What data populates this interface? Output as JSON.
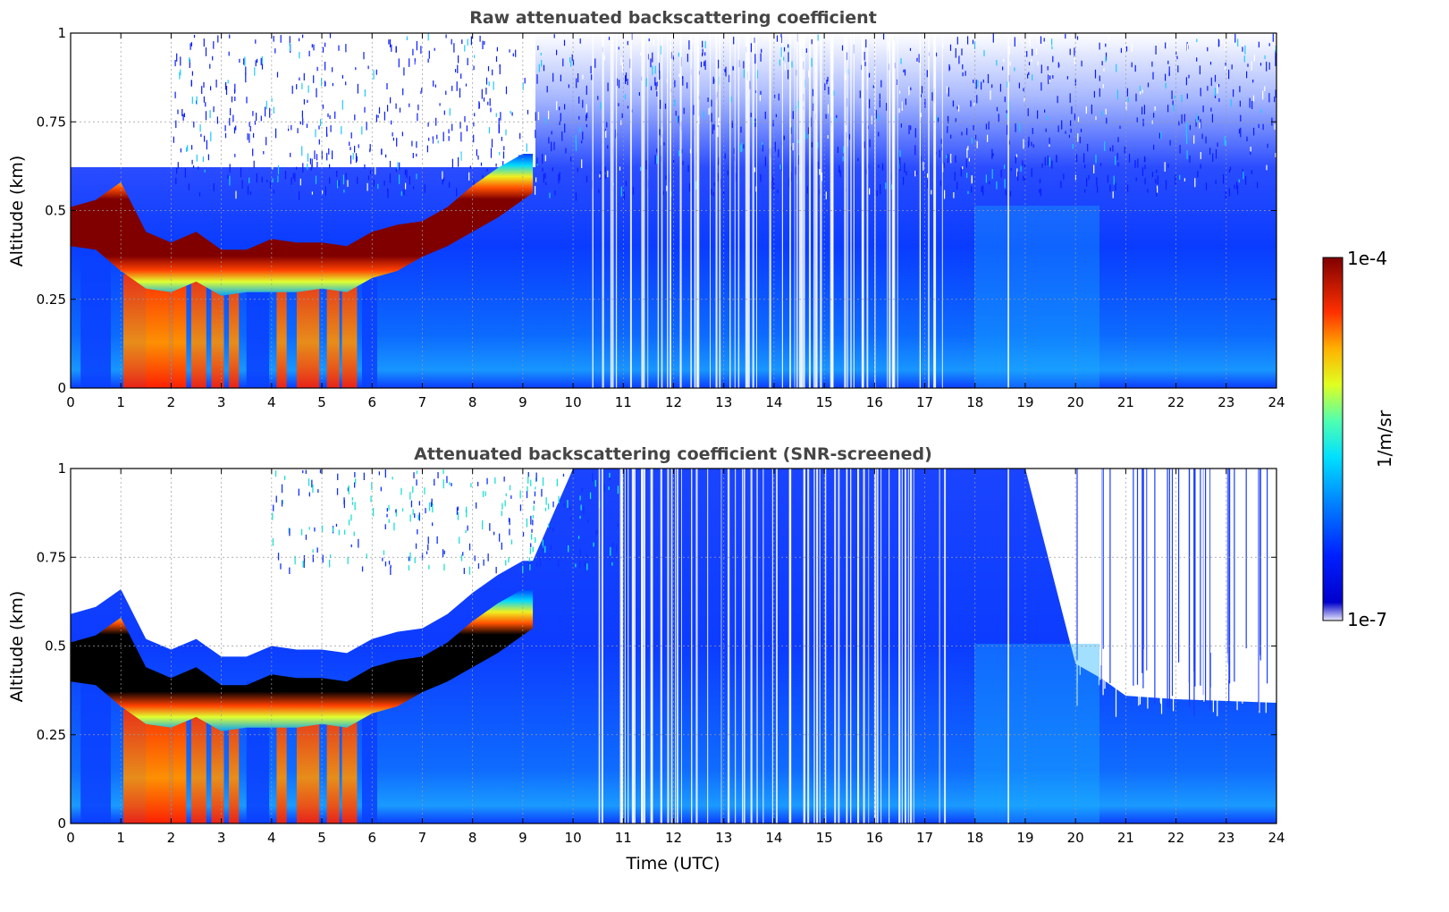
{
  "chart_data": [
    {
      "type": "heatmap",
      "title": "Raw attenuated backscattering coefficient",
      "xlabel": "",
      "ylabel": "Altitude (km)",
      "xlim": [
        0,
        24
      ],
      "ylim": [
        0,
        1
      ],
      "xticks": [
        "0",
        "1",
        "2",
        "3",
        "4",
        "5",
        "6",
        "7",
        "8",
        "9",
        "10",
        "11",
        "12",
        "13",
        "14",
        "15",
        "16",
        "17",
        "18",
        "19",
        "20",
        "21",
        "22",
        "23",
        "24"
      ],
      "yticks": [
        "0",
        "0.25",
        "0.5",
        "0.75",
        "1"
      ],
      "grid": true,
      "colorscale": "jet",
      "color_range": [
        "1e-7",
        "1e-4"
      ],
      "color_units": "1/m/sr",
      "cloud_layer_altitude_km": {
        "time_utc": [
          0,
          0.5,
          1,
          1.5,
          2,
          2.5,
          3,
          3.5,
          4,
          4.5,
          5,
          5.5,
          6,
          6.5,
          7,
          7.5,
          8,
          8.5,
          9,
          9.2
        ],
        "base": [
          0.4,
          0.39,
          0.33,
          0.28,
          0.27,
          0.3,
          0.26,
          0.27,
          0.27,
          0.27,
          0.28,
          0.27,
          0.31,
          0.33,
          0.37,
          0.4,
          0.44,
          0.48,
          0.53,
          0.55
        ],
        "top": [
          0.51,
          0.53,
          0.58,
          0.44,
          0.41,
          0.44,
          0.39,
          0.39,
          0.42,
          0.41,
          0.41,
          0.4,
          0.44,
          0.46,
          0.47,
          0.51,
          0.57,
          0.62,
          0.66,
          0.66
        ]
      }
    },
    {
      "type": "heatmap",
      "title": "Attenuated backscattering coefficient (SNR-screened)",
      "xlabel": "Time (UTC)",
      "ylabel": "Altitude (km)",
      "xlim": [
        0,
        24
      ],
      "ylim": [
        0,
        1
      ],
      "xticks": [
        "0",
        "1",
        "2",
        "3",
        "4",
        "5",
        "6",
        "7",
        "8",
        "9",
        "10",
        "11",
        "12",
        "13",
        "14",
        "15",
        "16",
        "17",
        "18",
        "19",
        "20",
        "21",
        "22",
        "23",
        "24"
      ],
      "yticks": [
        "0",
        "0.25",
        "0.5",
        "0.75",
        "1"
      ],
      "grid": true,
      "colorscale": "jet",
      "color_range": [
        "1e-7",
        "1e-4"
      ],
      "color_units": "1/m/sr",
      "cloud_layer_altitude_km": {
        "time_utc": [
          0,
          0.5,
          1,
          1.5,
          2,
          2.5,
          3,
          3.5,
          4,
          4.5,
          5,
          5.5,
          6,
          6.5,
          7,
          7.5,
          8,
          8.5,
          9,
          9.2
        ],
        "base": [
          0.4,
          0.39,
          0.33,
          0.28,
          0.27,
          0.3,
          0.26,
          0.27,
          0.27,
          0.27,
          0.28,
          0.27,
          0.31,
          0.33,
          0.37,
          0.4,
          0.44,
          0.48,
          0.53,
          0.55
        ],
        "top": [
          0.51,
          0.53,
          0.58,
          0.44,
          0.41,
          0.44,
          0.39,
          0.39,
          0.42,
          0.41,
          0.41,
          0.4,
          0.44,
          0.46,
          0.47,
          0.51,
          0.57,
          0.62,
          0.66,
          0.66
        ]
      },
      "screened_signal_top_km": {
        "time_utc": [
          10,
          19,
          20,
          20.5,
          21,
          22,
          24
        ],
        "value": [
          1,
          1,
          0.45,
          0.41,
          0.36,
          0.35,
          0.34
        ]
      }
    }
  ],
  "colorbar": {
    "label": "1/m/sr",
    "max_label": "1e-4",
    "min_label": "1e-7"
  },
  "colors": {
    "cloud_core": "#800000",
    "screened_core": "#000000",
    "background_low": "#0a2cff",
    "clear_sky": "#ffffff"
  }
}
